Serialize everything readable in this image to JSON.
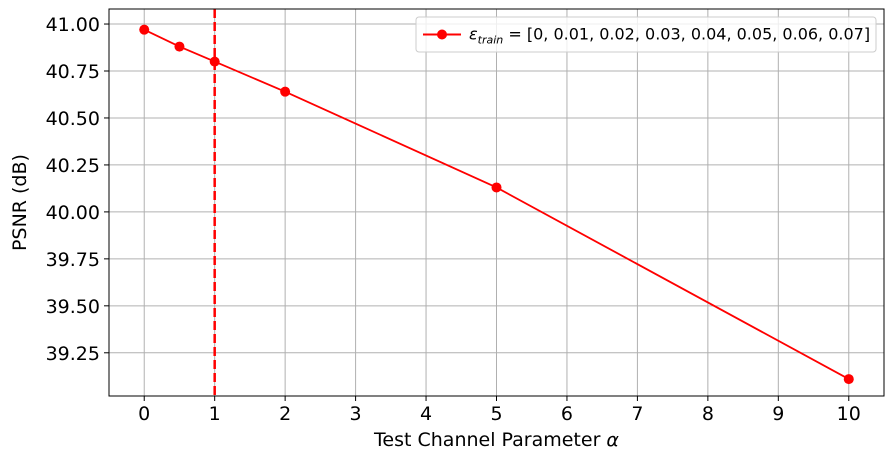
{
  "chart_data": {
    "type": "line",
    "xlabel_text": "Test Channel Parameter ",
    "xlabel_symbol": "α",
    "ylabel": "PSNR (dB)",
    "xlim": [
      -0.5,
      10.5
    ],
    "ylim": [
      39.02,
      41.08
    ],
    "x_ticks": [
      0,
      1,
      2,
      3,
      4,
      5,
      6,
      7,
      8,
      9,
      10
    ],
    "y_ticks": [
      39.25,
      39.5,
      39.75,
      40.0,
      40.25,
      40.5,
      40.75,
      41.0
    ],
    "y_tick_labels": [
      "39.25",
      "39.50",
      "39.75",
      "40.00",
      "40.25",
      "40.50",
      "40.75",
      "41.00"
    ],
    "grid": true,
    "legend_position": "top-right",
    "vertical_line": {
      "x": 1,
      "color": "#ff0000",
      "style": "dashed"
    },
    "series": [
      {
        "name_prefix": "ε",
        "name_subscript": "train",
        "name_suffix": " = [0, 0.01, 0.02, 0.03, 0.04, 0.05, 0.06, 0.07]",
        "color": "#ff0000",
        "marker": "circle",
        "x": [
          0,
          0.5,
          1,
          2,
          5,
          10
        ],
        "y": [
          40.97,
          40.88,
          40.8,
          40.64,
          40.13,
          39.11
        ]
      }
    ]
  }
}
